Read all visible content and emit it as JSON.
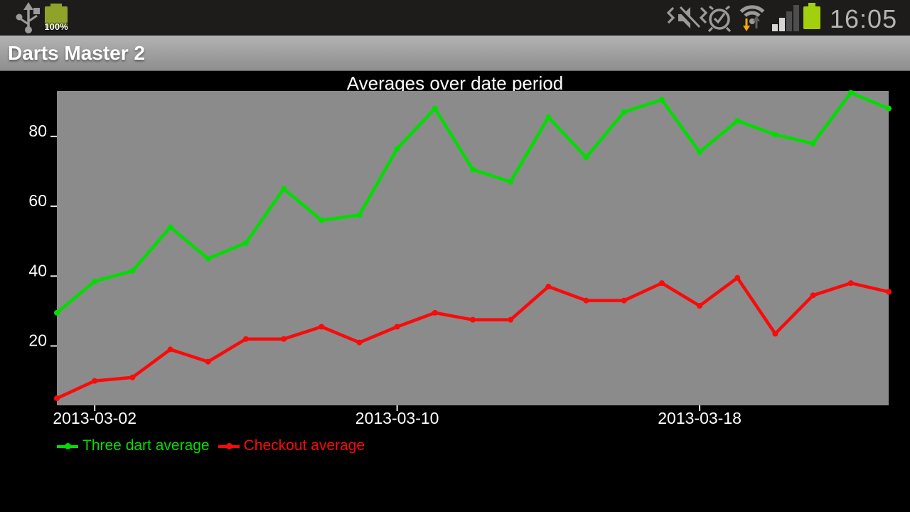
{
  "status_bar": {
    "time": "16:05",
    "battery_level_label": "100%",
    "colors": {
      "background": "#1e1b1b",
      "icon_gray": "#9a9a9a",
      "battery_green_left": "#8fa32b",
      "battery_green_right": "#a2d00e",
      "download_arrow_orange": "#ffa800",
      "upload_arrow_gray": "#5e5e5e",
      "time_text": "#b4b4b4"
    }
  },
  "title_bar": {
    "title": "Darts Master 2"
  },
  "chart_data": {
    "type": "line",
    "title": "Averages over date period",
    "xlabel": "",
    "ylabel": "",
    "x_dates": [
      "2013-03-01",
      "2013-03-02",
      "2013-03-03",
      "2013-03-04",
      "2013-03-05",
      "2013-03-06",
      "2013-03-07",
      "2013-03-08",
      "2013-03-09",
      "2013-03-10",
      "2013-03-11",
      "2013-03-12",
      "2013-03-13",
      "2013-03-14",
      "2013-03-15",
      "2013-03-16",
      "2013-03-17",
      "2013-03-18",
      "2013-03-19",
      "2013-03-20",
      "2013-03-21",
      "2013-03-22",
      "2013-03-23"
    ],
    "x_tick_labels": [
      {
        "label": "2013-03-02",
        "index": 1
      },
      {
        "label": "2013-03-10",
        "index": 9
      },
      {
        "label": "2013-03-18",
        "index": 17
      }
    ],
    "y_ticks": [
      20,
      40,
      60,
      80
    ],
    "ylim": [
      3,
      93
    ],
    "grid": false,
    "legend_position": "bottom-left",
    "plot_background": "#8b8b8b",
    "label_color": "#ffffff",
    "tick_color": "#e6e6e6",
    "series": [
      {
        "name": "Three dart average",
        "color": "#00dd00",
        "values": [
          29.5,
          38.5,
          41.5,
          54,
          45,
          49.5,
          65,
          56,
          57.5,
          76.5,
          88,
          70.5,
          67,
          85.5,
          74,
          87,
          90.5,
          75.5,
          84.5,
          80.5,
          78,
          92.5,
          88
        ]
      },
      {
        "name": "Checkout average",
        "color": "#fa0a0a",
        "values": [
          5,
          10,
          11,
          19,
          15.5,
          22,
          22,
          25.5,
          21,
          25.5,
          29.5,
          27.5,
          27.5,
          37,
          33,
          33,
          38,
          31.5,
          39.5,
          23.5,
          34.5,
          38,
          35.5
        ]
      }
    ]
  }
}
